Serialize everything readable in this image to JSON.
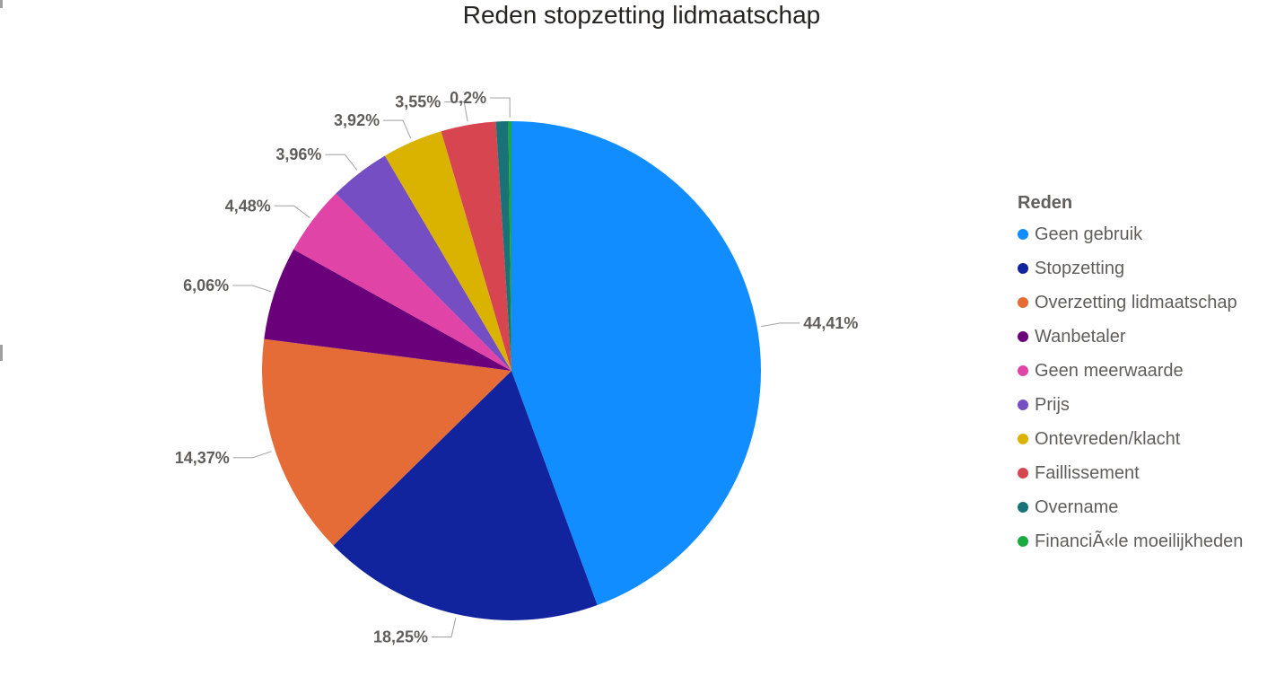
{
  "chart_data": {
    "type": "pie",
    "title": "Reden stopzetting lidmaatschap",
    "legend_title": "Reden",
    "legend_position": "right",
    "slices": [
      {
        "label": "Geen gebruik",
        "value": 44.41,
        "display": "44,41%",
        "color": "#118DFF"
      },
      {
        "label": "Stopzetting",
        "value": 18.25,
        "display": "18,25%",
        "color": "#12239E"
      },
      {
        "label": "Overzetting lidmaatschap",
        "value": 14.37,
        "display": "14,37%",
        "color": "#E66C37"
      },
      {
        "label": "Wanbetaler",
        "value": 6.06,
        "display": "6,06%",
        "color": "#6B007B"
      },
      {
        "label": "Geen meerwaarde",
        "value": 4.48,
        "display": "4,48%",
        "color": "#E044A7"
      },
      {
        "label": "Prijs",
        "value": 3.96,
        "display": "3,96%",
        "color": "#744EC2"
      },
      {
        "label": "Ontevreden/klacht",
        "value": 3.92,
        "display": "3,92%",
        "color": "#D9B300"
      },
      {
        "label": "Faillissement",
        "value": 3.55,
        "display": "3,55%",
        "color": "#D64550"
      },
      {
        "label": "Overname",
        "value": 0.8,
        "display": "",
        "color": "#197278"
      },
      {
        "label": "FinanciÃ«le moeilijkheden",
        "value": 0.2,
        "display": "0,2%",
        "color": "#1AAB40"
      }
    ]
  }
}
